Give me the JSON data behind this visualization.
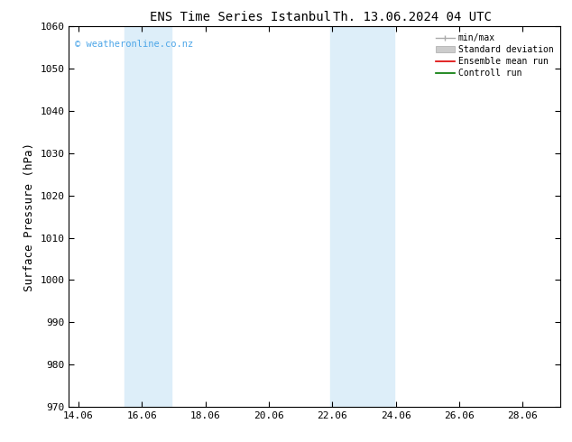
{
  "title_left": "ENS Time Series Istanbul",
  "title_right": "Th. 13.06.2024 04 UTC",
  "ylabel": "Surface Pressure (hPa)",
  "ylim": [
    970,
    1060
  ],
  "yticks": [
    970,
    980,
    990,
    1000,
    1010,
    1020,
    1030,
    1040,
    1050,
    1060
  ],
  "xlim_start": 13.75,
  "xlim_end": 29.25,
  "xticks": [
    14.06,
    16.06,
    18.06,
    20.06,
    22.06,
    24.06,
    26.06,
    28.06
  ],
  "xtick_labels": [
    "14.06",
    "16.06",
    "18.06",
    "20.06",
    "22.06",
    "24.06",
    "26.06",
    "28.06"
  ],
  "shaded_bands": [
    {
      "x_start": 15.5,
      "x_end": 17.0,
      "color": "#ddeef9"
    },
    {
      "x_start": 22.0,
      "x_end": 24.0,
      "color": "#ddeef9"
    }
  ],
  "watermark_text": "© weatheronline.co.nz",
  "watermark_color": "#4da6e8",
  "legend_entries": [
    {
      "label": "min/max",
      "type": "minmax",
      "line_color": "#aaaaaa",
      "lw": 1.0
    },
    {
      "label": "Standard deviation",
      "type": "stddev",
      "fill_color": "#cccccc",
      "edge_color": "#aaaaaa"
    },
    {
      "label": "Ensemble mean run",
      "type": "line",
      "color": "#dd0000",
      "lw": 1.2
    },
    {
      "label": "Controll run",
      "type": "line",
      "color": "#007700",
      "lw": 1.2
    }
  ],
  "bg_color": "#ffffff",
  "tick_label_fontsize": 8,
  "axis_label_fontsize": 9,
  "title_fontsize": 10
}
